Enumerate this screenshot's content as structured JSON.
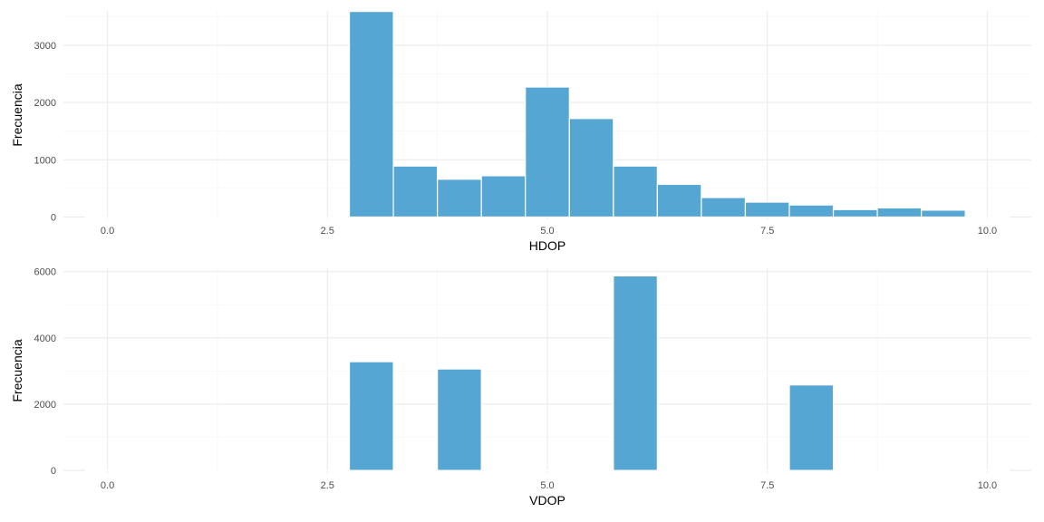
{
  "chart_data": [
    {
      "type": "bar",
      "xlabel": "HDOP",
      "ylabel": "Frecuencia",
      "xlim": [
        -0.5,
        10.5
      ],
      "ylim": [
        -40,
        3600
      ],
      "x_ticks": [
        0.0,
        2.5,
        5.0,
        7.5,
        10.0
      ],
      "x_tick_labels": [
        "0.0",
        "2.5",
        "5.0",
        "7.5",
        "10.0"
      ],
      "y_ticks": [
        0,
        1000,
        2000,
        3000
      ],
      "y_tick_labels": [
        "0",
        "1000",
        "2000",
        "3000"
      ],
      "grid": true,
      "bin_width": 0.5,
      "bin_centers": [
        0.0,
        0.5,
        1.0,
        1.5,
        2.0,
        2.5,
        3.0,
        3.5,
        4.0,
        4.5,
        5.0,
        5.5,
        6.0,
        6.5,
        7.0,
        7.5,
        8.0,
        8.5,
        9.0,
        9.5,
        10.0
      ],
      "values": [
        0,
        0,
        0,
        0,
        0,
        0,
        3590,
        890,
        660,
        720,
        2270,
        1720,
        890,
        570,
        340,
        260,
        210,
        130,
        160,
        120,
        0
      ]
    },
    {
      "type": "bar",
      "xlabel": "VDOP",
      "ylabel": "Frecuencia",
      "xlim": [
        -0.5,
        10.5
      ],
      "ylim": [
        -80,
        6100
      ],
      "x_ticks": [
        0.0,
        2.5,
        5.0,
        7.5,
        10.0
      ],
      "x_tick_labels": [
        "0.0",
        "2.5",
        "5.0",
        "7.5",
        "10.0"
      ],
      "y_ticks": [
        0,
        2000,
        4000,
        6000
      ],
      "y_tick_labels": [
        "0",
        "2000",
        "4000",
        "6000"
      ],
      "grid": true,
      "bin_width": 0.5,
      "bin_centers": [
        0.0,
        0.5,
        1.0,
        1.5,
        2.0,
        2.5,
        3.0,
        3.5,
        4.0,
        4.5,
        5.0,
        5.5,
        6.0,
        6.5,
        7.0,
        7.5,
        8.0,
        8.5,
        9.0,
        9.5,
        10.0
      ],
      "values": [
        0,
        0,
        0,
        0,
        0,
        0,
        3280,
        0,
        3060,
        0,
        0,
        0,
        5870,
        0,
        0,
        0,
        2580,
        0,
        0,
        0,
        0
      ]
    }
  ],
  "colors": {
    "bar_fill": "#56a6d4",
    "bar_stroke": "#ffffff",
    "grid_major": "#ebebeb",
    "grid_minor": "#f4f4f4",
    "tick_text": "#4d4d4d",
    "title_text": "#000000"
  }
}
